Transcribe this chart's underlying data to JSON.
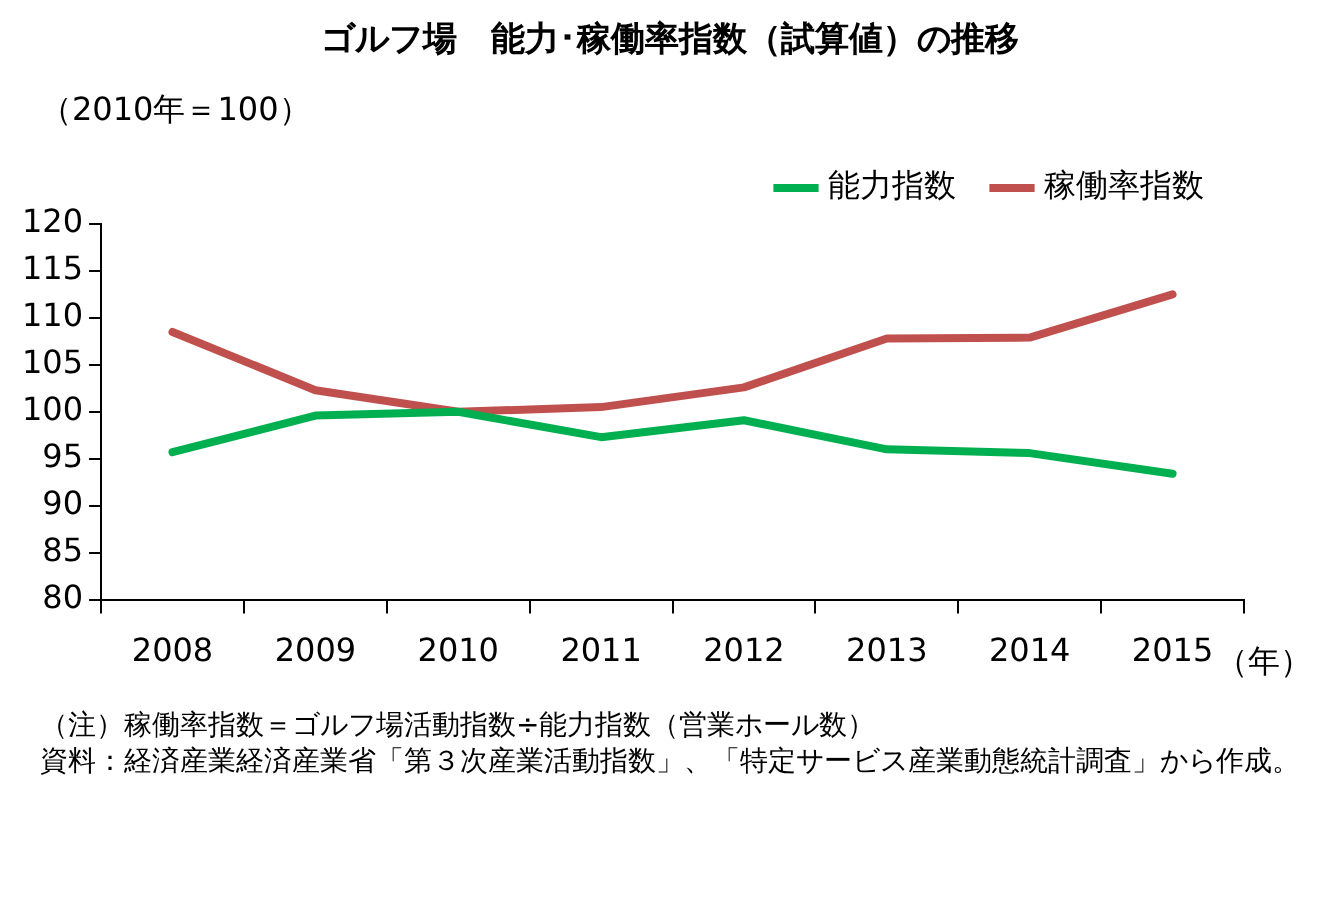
{
  "chart_data": {
    "type": "line",
    "title": "ゴルフ場　能力･稼働率指数（試算値）の推移",
    "ylabel": "（2010年＝100）",
    "xlabel": "（年）",
    "categories": [
      "2008",
      "2009",
      "2010",
      "2011",
      "2012",
      "2013",
      "2014",
      "2015"
    ],
    "series": [
      {
        "name": "能力指数",
        "color": "#00b050",
        "values": [
          95.7,
          99.6,
          100,
          97.3,
          99.1,
          96.0,
          95.6,
          93.4
        ]
      },
      {
        "name": "稼働率指数",
        "color": "#c0504d",
        "values": [
          108.5,
          102.3,
          100,
          100.5,
          102.6,
          107.8,
          107.9,
          112.5
        ]
      }
    ],
    "ylim": [
      80,
      120
    ],
    "yticks": [
      80,
      85,
      90,
      95,
      100,
      105,
      110,
      115,
      120
    ],
    "grid": false,
    "legend": "top right",
    "marker": "none",
    "line_style": "solid",
    "annotations": [
      "（注）稼働率指数＝ゴルフ場活動指数÷能力指数（営業ホール数）",
      "資料：経済産業経済産業省「第３次産業活動指数」、「特定サービス産業動態統計調査」から作成。"
    ]
  }
}
